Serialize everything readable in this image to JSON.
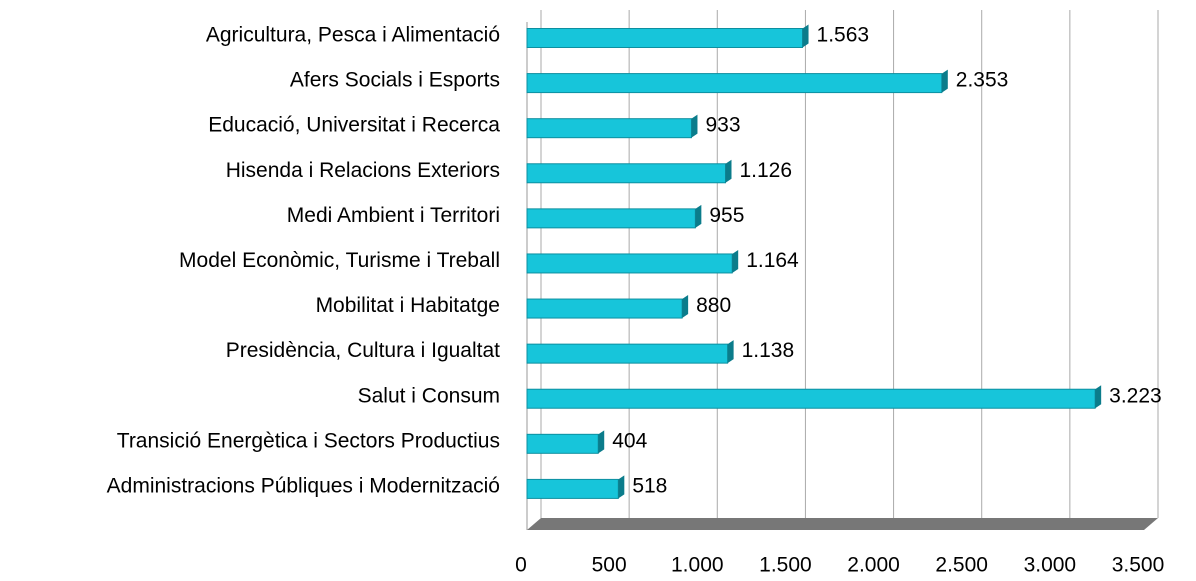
{
  "chart_data": {
    "type": "bar",
    "orientation": "horizontal",
    "categories": [
      "Agricultura, Pesca i Alimentació",
      "Afers Socials i Esports",
      "Educació, Universitat i Recerca",
      "Hisenda i Relacions Exteriors",
      "Medi Ambient i Territori",
      "Model Econòmic, Turisme i Treball",
      "Mobilitat i Habitatge",
      "Presidència, Cultura i Igualtat",
      "Salut i Consum",
      "Transició Energètica i Sectors Productius",
      "Administracions Públiques i Modernització"
    ],
    "values": [
      1563,
      2353,
      933,
      1126,
      955,
      1164,
      880,
      1138,
      3223,
      404,
      518
    ],
    "value_labels": [
      "1.563",
      "2.353",
      "933",
      "1.126",
      "955",
      "1.164",
      "880",
      "1.138",
      "3.223",
      "404",
      "518"
    ],
    "color": "#17c5da",
    "xlim": [
      0,
      3500
    ],
    "xticks": [
      0,
      500,
      {
        "value": 1000,
        "label": "1.000"
      },
      {
        "value": 1500,
        "label": "1.500"
      },
      {
        "value": 2000,
        "label": "2.000"
      },
      {
        "value": 2500,
        "label": "2.500"
      },
      {
        "value": 3000,
        "label": "3.000"
      },
      {
        "value": 3500,
        "label": "3.500"
      }
    ],
    "grid": true
  }
}
